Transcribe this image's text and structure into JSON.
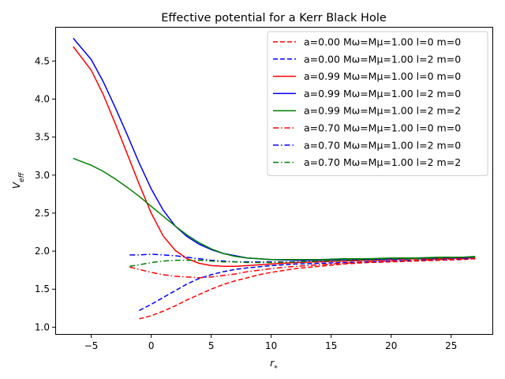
{
  "chart_data": {
    "type": "line",
    "title": "Effective potential for a Kerr Black Hole",
    "xlabel": "r*",
    "ylabel": "V_eff",
    "xlim": [
      -8,
      28.5
    ],
    "ylim": [
      0.9,
      4.95
    ],
    "xticks": [
      -5,
      0,
      5,
      10,
      15,
      20,
      25
    ],
    "xtick_labels": [
      "−5",
      "0",
      "5",
      "10",
      "15",
      "20",
      "25"
    ],
    "yticks": [
      1.0,
      1.5,
      2.0,
      2.5,
      3.0,
      3.5,
      4.0,
      4.5
    ],
    "ytick_labels": [
      "1.0",
      "1.5",
      "2.0",
      "2.5",
      "3.0",
      "3.5",
      "4.0",
      "4.5"
    ],
    "grid": false,
    "legend_position": "top-right",
    "series": [
      {
        "name": "a=0.00 Mω=Mμ=1.00 l=0 m=0",
        "color": "#ff0000",
        "dash": "dashed",
        "x": [
          -1,
          0,
          1,
          2,
          3,
          4,
          5,
          6,
          7,
          8,
          9,
          10,
          12,
          14,
          16,
          18,
          20,
          22,
          24,
          26,
          27
        ],
        "y": [
          1.11,
          1.15,
          1.21,
          1.28,
          1.36,
          1.43,
          1.5,
          1.56,
          1.61,
          1.65,
          1.69,
          1.72,
          1.77,
          1.8,
          1.83,
          1.85,
          1.86,
          1.87,
          1.88,
          1.89,
          1.9
        ]
      },
      {
        "name": "a=0.00 Mω=Mμ=1.00 l=2 m=0",
        "color": "#0000ff",
        "dash": "dashed",
        "x": [
          -1,
          0,
          1,
          2,
          3,
          4,
          5,
          6,
          7,
          8,
          10,
          12,
          14,
          16,
          18,
          20,
          22,
          24,
          26,
          27
        ],
        "y": [
          1.22,
          1.3,
          1.39,
          1.48,
          1.57,
          1.64,
          1.69,
          1.73,
          1.76,
          1.78,
          1.81,
          1.83,
          1.84,
          1.85,
          1.86,
          1.87,
          1.88,
          1.89,
          1.9,
          1.9
        ]
      },
      {
        "name": "a=0.99 Mω=Mμ=1.00 l=0 m=0",
        "color": "#ff0000",
        "dash": "solid",
        "x": [
          -6.5,
          -5,
          -4,
          -3,
          -2,
          -1,
          0,
          1,
          2,
          3,
          4,
          5,
          6,
          7,
          8,
          9,
          10,
          12,
          14,
          16,
          18,
          20,
          22,
          24,
          26,
          27
        ],
        "y": [
          4.69,
          4.38,
          4.06,
          3.68,
          3.28,
          2.88,
          2.5,
          2.2,
          2.01,
          1.9,
          1.84,
          1.81,
          1.8,
          1.8,
          1.81,
          1.82,
          1.83,
          1.85,
          1.86,
          1.87,
          1.88,
          1.89,
          1.9,
          1.9,
          1.91,
          1.91
        ]
      },
      {
        "name": "a=0.99 Mω=Mμ=1.00 l=2 m=0",
        "color": "#0000ff",
        "dash": "solid",
        "x": [
          -6.5,
          -5,
          -4,
          -3,
          -2,
          -1,
          0,
          1,
          2,
          3,
          4,
          5,
          6,
          7,
          8,
          9,
          10,
          12,
          14,
          16,
          18,
          20,
          22,
          24,
          26,
          27
        ],
        "y": [
          4.8,
          4.52,
          4.23,
          3.89,
          3.53,
          3.16,
          2.82,
          2.54,
          2.33,
          2.19,
          2.09,
          2.02,
          1.97,
          1.94,
          1.91,
          1.9,
          1.89,
          1.88,
          1.88,
          1.89,
          1.89,
          1.9,
          1.91,
          1.91,
          1.92,
          1.92
        ]
      },
      {
        "name": "a=0.99 Mω=Mμ=1.00 l=2 m=2",
        "color": "#008000",
        "dash": "solid",
        "x": [
          -6.5,
          -5,
          -4,
          -3,
          -2,
          -1,
          0,
          1,
          2,
          3,
          4,
          5,
          6,
          7,
          8,
          9,
          10,
          12,
          14,
          16,
          18,
          20,
          22,
          24,
          26,
          27
        ],
        "y": [
          3.22,
          3.13,
          3.05,
          2.95,
          2.84,
          2.72,
          2.59,
          2.46,
          2.33,
          2.21,
          2.11,
          2.03,
          1.97,
          1.93,
          1.91,
          1.9,
          1.89,
          1.89,
          1.89,
          1.9,
          1.9,
          1.91,
          1.91,
          1.92,
          1.92,
          1.93
        ]
      },
      {
        "name": "a=0.70 Mω=Mμ=1.00 l=0 m=0",
        "color": "#ff0000",
        "dash": "dashdot",
        "x": [
          -1.8,
          -1,
          0,
          1,
          2,
          3,
          4,
          5,
          6,
          7,
          8,
          10,
          12,
          14,
          16,
          18,
          20,
          22,
          24,
          26,
          27
        ],
        "y": [
          1.79,
          1.76,
          1.72,
          1.69,
          1.67,
          1.66,
          1.65,
          1.66,
          1.68,
          1.7,
          1.73,
          1.77,
          1.8,
          1.82,
          1.84,
          1.86,
          1.87,
          1.88,
          1.89,
          1.9,
          1.9
        ]
      },
      {
        "name": "a=0.70 Mω=Mμ=1.00 l=2 m=0",
        "color": "#0000ff",
        "dash": "dashdot",
        "x": [
          -1.8,
          -1,
          0,
          1,
          2,
          3,
          4,
          5,
          6,
          7,
          8,
          10,
          12,
          14,
          16,
          18,
          20,
          22,
          24,
          26,
          27
        ],
        "y": [
          1.95,
          1.95,
          1.96,
          1.95,
          1.94,
          1.92,
          1.9,
          1.88,
          1.87,
          1.86,
          1.86,
          1.86,
          1.86,
          1.87,
          1.88,
          1.89,
          1.89,
          1.9,
          1.91,
          1.91,
          1.92
        ]
      },
      {
        "name": "a=0.70 Mω=Mμ=1.00 l=2 m=2",
        "color": "#008000",
        "dash": "dashdot",
        "x": [
          -1.8,
          -1,
          0,
          1,
          2,
          3,
          4,
          5,
          6,
          7,
          8,
          10,
          12,
          14,
          16,
          18,
          20,
          22,
          24,
          26,
          27
        ],
        "y": [
          1.8,
          1.82,
          1.85,
          1.87,
          1.88,
          1.88,
          1.88,
          1.87,
          1.86,
          1.86,
          1.85,
          1.85,
          1.86,
          1.87,
          1.88,
          1.89,
          1.9,
          1.9,
          1.91,
          1.92,
          1.92
        ]
      }
    ]
  }
}
